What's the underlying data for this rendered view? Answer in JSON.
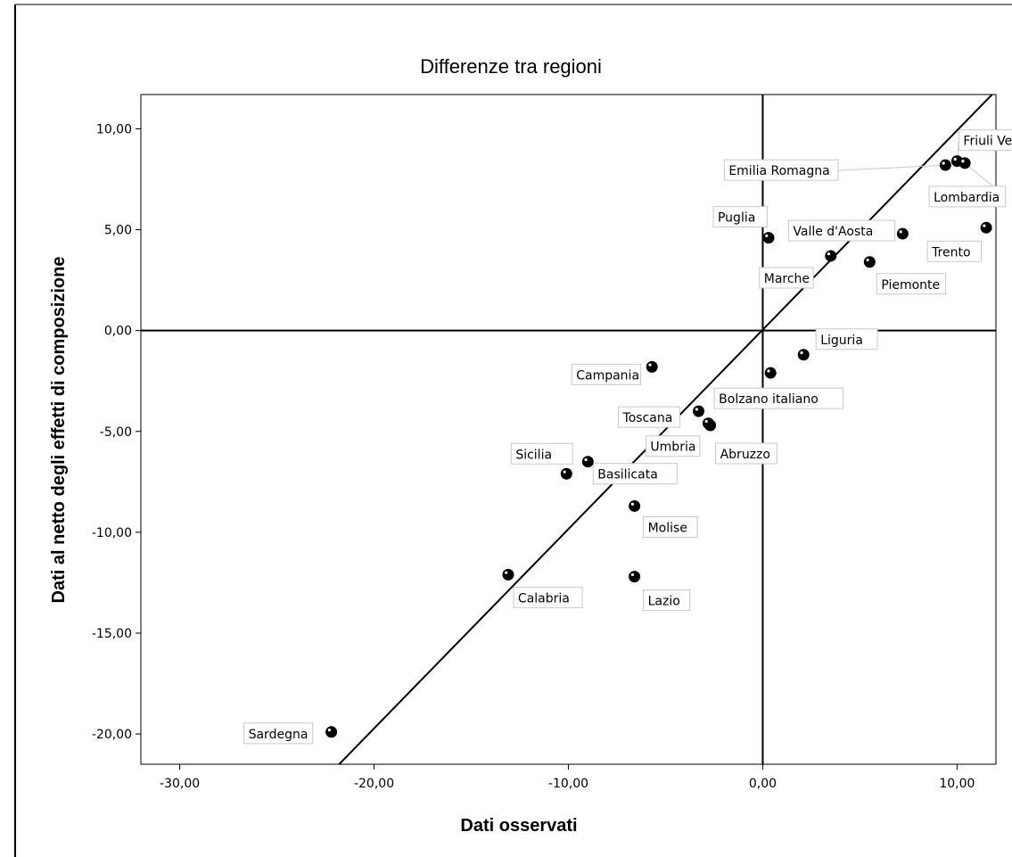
{
  "chart_data": {
    "type": "scatter",
    "title": "Differenze tra regioni",
    "xlabel": "Dati osservati",
    "ylabel": "Dati al netto degli effetti di composizione",
    "xlim": [
      -32.0,
      12.0
    ],
    "ylim": [
      -21.5,
      11.7
    ],
    "x_ticks": [
      -30,
      -20,
      -10,
      0,
      10
    ],
    "y_ticks": [
      10,
      5,
      0,
      -5,
      -10,
      -15,
      -20
    ],
    "x_tick_labels": [
      "-30,00",
      "-20,00",
      "-10,00",
      "0,00",
      "10,00"
    ],
    "y_tick_labels": [
      "10,00",
      "5,00",
      "0,00",
      "-5,00",
      "-10,00",
      "-15,00",
      "-20,00"
    ],
    "reference_lines": {
      "x": 0,
      "y": 0
    },
    "fit_line": {
      "from": [
        -21.8,
        -21.5
      ],
      "to": [
        11.8,
        11.7
      ]
    },
    "points": [
      {
        "label": "Friuli Venezia Giulia",
        "x": 10.0,
        "y": 8.4
      },
      {
        "label": "Emilia Romagna",
        "x": 9.4,
        "y": 8.2
      },
      {
        "label": "Lombardia",
        "x": 10.4,
        "y": 8.3
      },
      {
        "label": "Trento",
        "x": 11.5,
        "y": 5.1
      },
      {
        "label": "Puglia",
        "x": 0.3,
        "y": 4.6
      },
      {
        "label": "Valle d'Aosta",
        "x": 7.2,
        "y": 4.8
      },
      {
        "label": "Marche",
        "x": 3.5,
        "y": 3.7
      },
      {
        "label": "Piemonte",
        "x": 5.5,
        "y": 3.4
      },
      {
        "label": "Liguria",
        "x": 2.1,
        "y": -1.2
      },
      {
        "label": "Bolzano italiano",
        "x": 0.4,
        "y": -2.1
      },
      {
        "label": "Campania",
        "x": -5.7,
        "y": -1.8
      },
      {
        "label": "Toscana",
        "x": -3.3,
        "y": -4.0
      },
      {
        "label": "Abruzzo",
        "x": -2.7,
        "y": -4.7
      },
      {
        "label": "Umbria",
        "x": -2.8,
        "y": -4.6
      },
      {
        "label": "Sicilia",
        "x": -10.1,
        "y": -7.1
      },
      {
        "label": "Basilicata",
        "x": -9.0,
        "y": -6.5
      },
      {
        "label": "Molise",
        "x": -6.6,
        "y": -8.7
      },
      {
        "label": "Calabria",
        "x": -13.1,
        "y": -12.1
      },
      {
        "label": "Lazio",
        "x": -6.6,
        "y": -12.2
      },
      {
        "label": "Sardegna",
        "x": -22.2,
        "y": -19.9
      }
    ]
  }
}
